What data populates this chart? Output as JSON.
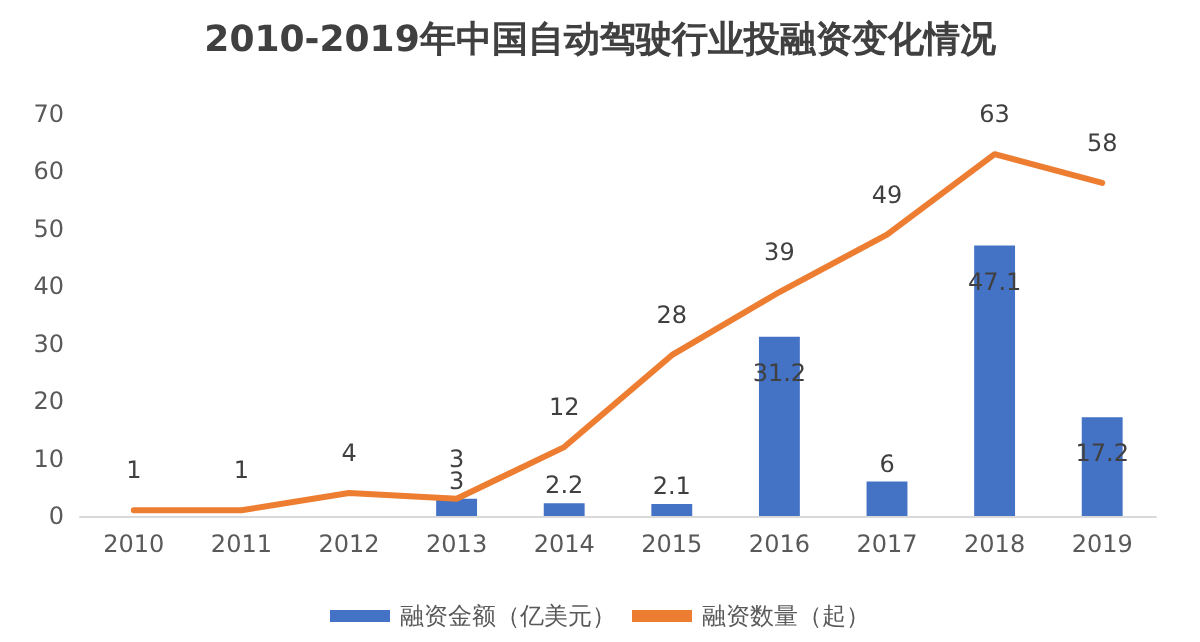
{
  "chart_data": {
    "type": "bar",
    "title": "2010-2019年中国自动驾驶行业投融资变化情况",
    "categories": [
      "2010",
      "2011",
      "2012",
      "2013",
      "2014",
      "2015",
      "2016",
      "2017",
      "2018",
      "2019"
    ],
    "series": [
      {
        "name": "融资金额（亿美元）",
        "color": "#4472c4",
        "values": [
          null,
          null,
          null,
          3,
          2.2,
          2.1,
          31.2,
          6,
          47.1,
          17.2
        ]
      },
      {
        "name": "融资数量（起）",
        "type": "line",
        "color": "#ed7d31",
        "values": [
          1,
          1,
          4,
          3,
          12,
          28,
          39,
          49,
          63,
          58
        ]
      }
    ],
    "ylim": [
      0,
      70
    ],
    "yticks": [
      0,
      10,
      20,
      30,
      40,
      50,
      60,
      70
    ],
    "grid": false,
    "legend": "bottom",
    "marker": "none",
    "line_style": "solid",
    "data_labels": true
  }
}
